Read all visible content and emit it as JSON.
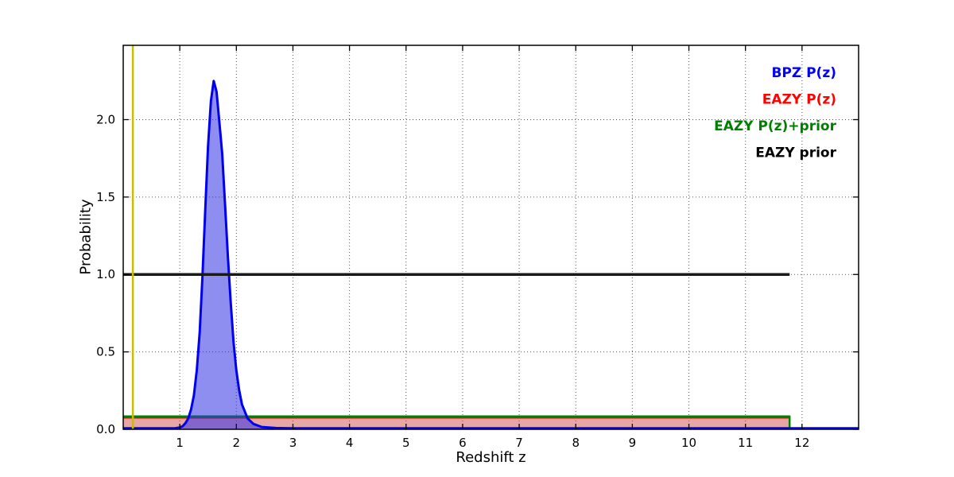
{
  "chart_data": {
    "type": "line",
    "title": "",
    "xlabel": "Redshift z",
    "ylabel": "Probability",
    "xlim": [
      0,
      13
    ],
    "ylim": [
      0,
      2.48
    ],
    "xticks": [
      1,
      2,
      3,
      4,
      5,
      6,
      7,
      8,
      9,
      10,
      11,
      12
    ],
    "yticks": [
      0.0,
      0.5,
      1.0,
      1.5,
      2.0
    ],
    "grid": true,
    "legend": {
      "position": "upper-right",
      "entries": [
        {
          "label": "BPZ P(z)",
          "color": "#0000ff"
        },
        {
          "label": "EAZY P(z)",
          "color": "#ff0000"
        },
        {
          "label": "EAZY P(z)+prior",
          "color": "#008000"
        },
        {
          "label": "EAZY prior",
          "color": "#000000"
        }
      ]
    },
    "marker_line": {
      "x": 0.17,
      "color": "#c8be00"
    },
    "series": [
      {
        "name": "EAZY P(z)",
        "color": "#ff0000",
        "fill": "rgba(200,60,60,0.45)",
        "width": 1.5,
        "points": [
          [
            0,
            0.073
          ],
          [
            11.78,
            0.073
          ],
          [
            11.78,
            0.004
          ]
        ]
      },
      {
        "name": "EAZY P(z)+prior",
        "color": "#008000",
        "fill": null,
        "width": 2.5,
        "points": [
          [
            0,
            0.083
          ],
          [
            11.78,
            0.083
          ],
          [
            11.78,
            0.004
          ]
        ]
      },
      {
        "name": "BPZ P(z)",
        "color": "#0000ee",
        "fill": "rgba(50,50,230,0.55)",
        "width": 3,
        "points": [
          [
            0,
            0.006
          ],
          [
            0.9,
            0.006
          ],
          [
            1.0,
            0.012
          ],
          [
            1.05,
            0.02
          ],
          [
            1.1,
            0.04
          ],
          [
            1.15,
            0.07
          ],
          [
            1.2,
            0.13
          ],
          [
            1.25,
            0.22
          ],
          [
            1.3,
            0.38
          ],
          [
            1.35,
            0.62
          ],
          [
            1.4,
            0.98
          ],
          [
            1.45,
            1.42
          ],
          [
            1.5,
            1.83
          ],
          [
            1.55,
            2.12
          ],
          [
            1.6,
            2.25
          ],
          [
            1.65,
            2.18
          ],
          [
            1.7,
            1.98
          ],
          [
            1.75,
            1.78
          ],
          [
            1.8,
            1.45
          ],
          [
            1.85,
            1.12
          ],
          [
            1.9,
            0.82
          ],
          [
            1.95,
            0.56
          ],
          [
            2.0,
            0.38
          ],
          [
            2.05,
            0.25
          ],
          [
            2.1,
            0.16
          ],
          [
            2.2,
            0.07
          ],
          [
            2.3,
            0.035
          ],
          [
            2.45,
            0.015
          ],
          [
            2.7,
            0.008
          ],
          [
            3.0,
            0.006
          ],
          [
            13.0,
            0.006
          ]
        ]
      },
      {
        "name": "EAZY prior",
        "color": "#1a1a1a",
        "fill": null,
        "width": 3.5,
        "points": [
          [
            0,
            1.0
          ],
          [
            11.78,
            1.0
          ]
        ]
      }
    ]
  }
}
